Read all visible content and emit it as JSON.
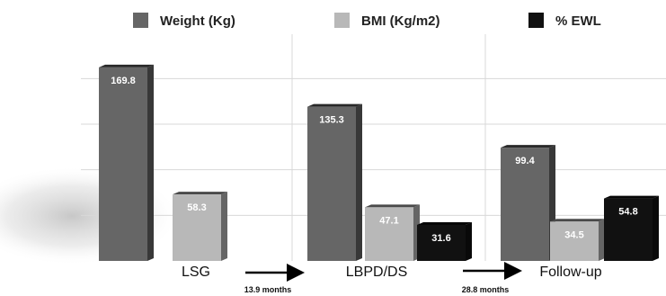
{
  "chart_data": {
    "type": "bar",
    "categories": [
      "LSG",
      "LBPD/DS",
      "Follow-up"
    ],
    "series": [
      {
        "name": "Weight (Kg)",
        "color": "#666666",
        "values": [
          169.8,
          135.3,
          99.4
        ],
        "labels": [
          "169.8",
          "135.3",
          "99.4"
        ]
      },
      {
        "name": "BMI (Kg/m2)",
        "color": "#b8b8b8",
        "values": [
          58.3,
          47.1,
          34.5
        ],
        "labels": [
          "58.3",
          "47.1",
          "34.5"
        ]
      },
      {
        "name": "% EWL",
        "color": "#111111",
        "values": [
          null,
          31.6,
          54.8
        ],
        "labels": [
          "",
          "31.6",
          "54.8"
        ]
      }
    ],
    "intervals": [
      "13.9 months",
      "28.8 months"
    ],
    "ylim": [
      0,
      180
    ],
    "grid": true,
    "legend_position": "top"
  }
}
